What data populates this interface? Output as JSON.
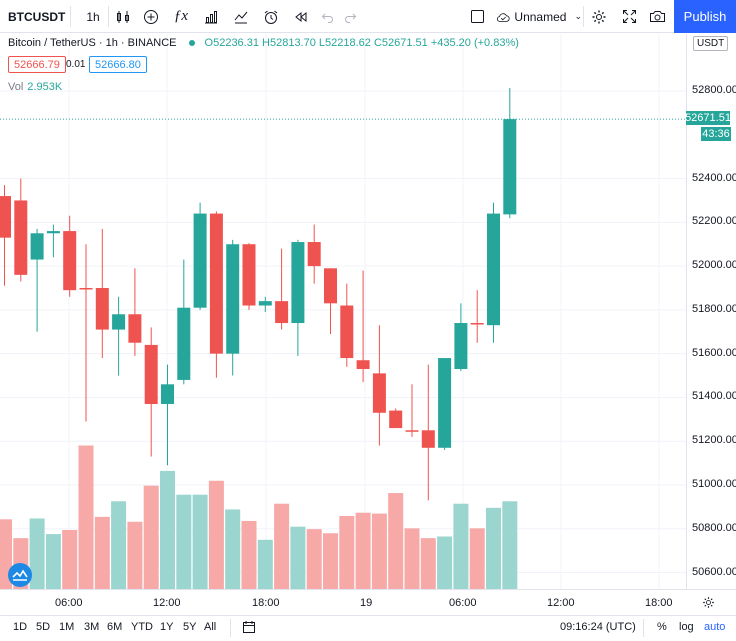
{
  "toolbar": {
    "symbol": "BTCUSDT",
    "interval": "1h",
    "layout_name": "Unnamed",
    "publish_label": "Publish"
  },
  "legend": {
    "title": "Bitcoin / TetherUS · 1h · BINANCE",
    "ohlc": "O52236.31 H52813.70 L52218.62 C52671.51 +435.20 (+0.83%)",
    "bid": "52666.79",
    "spread": "0.01",
    "ask": "52666.80",
    "vol_label": "Vol",
    "vol_value": "2.953K"
  },
  "price_scale": {
    "currency": "USDT",
    "ticks": [
      "52800.00",
      "52400.00",
      "52200.00",
      "52000.00",
      "51800.00",
      "51600.00",
      "51400.00",
      "51200.00",
      "51000.00",
      "50800.00",
      "50600.00"
    ],
    "current_price": "52671.51",
    "countdown": "43:36"
  },
  "time_scale": {
    "ticks": [
      "06:00",
      "12:00",
      "18:00",
      "19",
      "06:00",
      "12:00",
      "18:00"
    ]
  },
  "bottom_bar": {
    "ranges": [
      "1D",
      "5D",
      "1M",
      "3M",
      "6M",
      "YTD",
      "1Y",
      "5Y",
      "All"
    ],
    "clock": "09:16:24 (UTC)",
    "percent": "%",
    "log": "log",
    "auto": "auto"
  },
  "colors": {
    "up": "#26a69a",
    "down": "#ef5350",
    "up_volume": "#9bd5cf",
    "down_volume": "#f6a9a7",
    "accent": "#2962ff"
  },
  "chart_data": {
    "type": "candlestick",
    "interval": "1h",
    "y_range": [
      50500,
      52950
    ],
    "candles": [
      {
        "o": 52320,
        "h": 52370,
        "l": 51910,
        "c": 52130
      },
      {
        "o": 52300,
        "h": 52400,
        "l": 51930,
        "c": 51960
      },
      {
        "o": 52030,
        "h": 52170,
        "l": 51700,
        "c": 52150
      },
      {
        "o": 52150,
        "h": 52190,
        "l": 52040,
        "c": 52160
      },
      {
        "o": 52160,
        "h": 52230,
        "l": 51860,
        "c": 51890
      },
      {
        "o": 51900,
        "h": 52100,
        "l": 51290,
        "c": 51895
      },
      {
        "o": 51900,
        "h": 52170,
        "l": 51580,
        "c": 51710
      },
      {
        "o": 51710,
        "h": 51860,
        "l": 51500,
        "c": 51780
      },
      {
        "o": 51780,
        "h": 51990,
        "l": 51590,
        "c": 51650
      },
      {
        "o": 51640,
        "h": 51720,
        "l": 51130,
        "c": 51370
      },
      {
        "o": 51370,
        "h": 51550,
        "l": 51090,
        "c": 51460
      },
      {
        "o": 51480,
        "h": 52030,
        "l": 51460,
        "c": 51810
      },
      {
        "o": 51810,
        "h": 52290,
        "l": 51800,
        "c": 52240
      },
      {
        "o": 52240,
        "h": 52250,
        "l": 51490,
        "c": 51600
      },
      {
        "o": 51600,
        "h": 52120,
        "l": 51500,
        "c": 52100
      },
      {
        "o": 52100,
        "h": 52105,
        "l": 51800,
        "c": 51820
      },
      {
        "o": 51820,
        "h": 51860,
        "l": 51790,
        "c": 51840
      },
      {
        "o": 51840,
        "h": 52080,
        "l": 51710,
        "c": 51740
      },
      {
        "o": 51740,
        "h": 52120,
        "l": 51590,
        "c": 52110
      },
      {
        "o": 52110,
        "h": 52190,
        "l": 51920,
        "c": 52000
      },
      {
        "o": 51990,
        "h": 51990,
        "l": 51690,
        "c": 51830
      },
      {
        "o": 51820,
        "h": 51920,
        "l": 51540,
        "c": 51580
      },
      {
        "o": 51570,
        "h": 51980,
        "l": 51470,
        "c": 51530
      },
      {
        "o": 51510,
        "h": 51730,
        "l": 51180,
        "c": 51330
      },
      {
        "o": 51340,
        "h": 51350,
        "l": 51270,
        "c": 51260
      },
      {
        "o": 51250,
        "h": 51460,
        "l": 51220,
        "c": 51245
      },
      {
        "o": 51250,
        "h": 51550,
        "l": 50930,
        "c": 51170
      },
      {
        "o": 51170,
        "h": 51570,
        "l": 51160,
        "c": 51580
      },
      {
        "o": 51530,
        "h": 51830,
        "l": 51520,
        "c": 51740
      },
      {
        "o": 51740,
        "h": 51890,
        "l": 51650,
        "c": 51735
      },
      {
        "o": 51730,
        "h": 52290,
        "l": 51650,
        "c": 52240
      },
      {
        "o": 52236.31,
        "h": 52813.7,
        "l": 52218.62,
        "c": 52671.51
      }
    ],
    "volumes": [
      0.85,
      0.62,
      0.86,
      0.67,
      0.72,
      1.75,
      0.88,
      1.07,
      0.82,
      1.26,
      1.44,
      1.15,
      1.15,
      1.32,
      0.97,
      0.83,
      0.6,
      1.04,
      0.76,
      0.73,
      0.68,
      0.89,
      0.93,
      0.92,
      1.17,
      0.74,
      0.62,
      0.64,
      1.04,
      0.74,
      0.99,
      1.07
    ],
    "x_labels": [
      "06:00",
      "12:00",
      "18:00",
      "19",
      "06:00",
      "12:00",
      "18:00"
    ]
  }
}
